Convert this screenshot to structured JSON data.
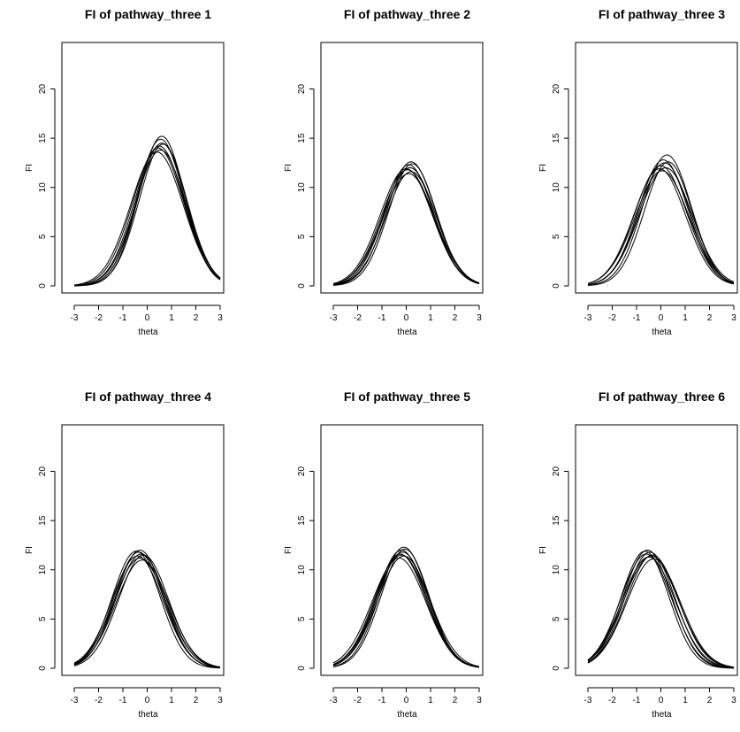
{
  "chart_data": [
    {
      "type": "line",
      "title": "FI of pathway_three 1",
      "xlabel": "theta",
      "ylabel": "FI",
      "xlim": [
        -3,
        3
      ],
      "ylim": [
        0,
        24
      ],
      "xticks": [
        -3,
        -2,
        -1,
        0,
        1,
        2,
        3
      ],
      "yticks": [
        0,
        5,
        10,
        15,
        20
      ],
      "curve_shape": "gaussian",
      "series": [
        {
          "peak": 15.2,
          "center": 0.6,
          "sd": 0.95
        },
        {
          "peak": 14.9,
          "center": 0.55,
          "sd": 0.97
        },
        {
          "peak": 14.5,
          "center": 0.6,
          "sd": 1.0
        },
        {
          "peak": 14.2,
          "center": 0.5,
          "sd": 1.02
        },
        {
          "peak": 14.0,
          "center": 0.45,
          "sd": 1.05
        },
        {
          "peak": 13.8,
          "center": 0.55,
          "sd": 1.03
        },
        {
          "peak": 13.6,
          "center": 0.4,
          "sd": 1.08
        },
        {
          "peak": 14.4,
          "center": 0.65,
          "sd": 0.98
        }
      ]
    },
    {
      "type": "line",
      "title": "FI of pathway_three 2",
      "xlabel": "theta",
      "ylabel": "FI",
      "xlim": [
        -3,
        3
      ],
      "ylim": [
        0,
        24
      ],
      "xticks": [
        -3,
        -2,
        -1,
        0,
        1,
        2,
        3
      ],
      "yticks": [
        0,
        5,
        10,
        15,
        20
      ],
      "curve_shape": "gaussian",
      "series": [
        {
          "peak": 12.6,
          "center": 0.2,
          "sd": 1.0
        },
        {
          "peak": 12.3,
          "center": 0.1,
          "sd": 1.02
        },
        {
          "peak": 12.0,
          "center": 0.15,
          "sd": 1.05
        },
        {
          "peak": 11.8,
          "center": 0.05,
          "sd": 1.06
        },
        {
          "peak": 11.6,
          "center": 0.2,
          "sd": 1.04
        },
        {
          "peak": 11.4,
          "center": 0.1,
          "sd": 1.08
        },
        {
          "peak": 12.4,
          "center": 0.25,
          "sd": 0.98
        },
        {
          "peak": 11.9,
          "center": 0.0,
          "sd": 1.07
        }
      ]
    },
    {
      "type": "line",
      "title": "FI of pathway_three 3",
      "xlabel": "theta",
      "ylabel": "FI",
      "xlim": [
        -3,
        3
      ],
      "ylim": [
        0,
        24
      ],
      "xticks": [
        -3,
        -2,
        -1,
        0,
        1,
        2,
        3
      ],
      "yticks": [
        0,
        5,
        10,
        15,
        20
      ],
      "curve_shape": "gaussian",
      "series": [
        {
          "peak": 13.3,
          "center": 0.25,
          "sd": 1.0
        },
        {
          "peak": 12.8,
          "center": 0.1,
          "sd": 1.02
        },
        {
          "peak": 12.5,
          "center": 0.15,
          "sd": 1.04
        },
        {
          "peak": 12.2,
          "center": 0.0,
          "sd": 1.07
        },
        {
          "peak": 12.0,
          "center": 0.2,
          "sd": 1.08
        },
        {
          "peak": 11.7,
          "center": 0.05,
          "sd": 1.1
        },
        {
          "peak": 12.6,
          "center": 0.3,
          "sd": 0.98
        },
        {
          "peak": 11.9,
          "center": -0.05,
          "sd": 1.06
        }
      ]
    },
    {
      "type": "line",
      "title": "FI of pathway_three 4",
      "xlabel": "theta",
      "ylabel": "FI",
      "xlim": [
        -3,
        3
      ],
      "ylim": [
        0,
        24
      ],
      "xticks": [
        -3,
        -2,
        -1,
        0,
        1,
        2,
        3
      ],
      "yticks": [
        0,
        5,
        10,
        15,
        20
      ],
      "curve_shape": "gaussian",
      "series": [
        {
          "peak": 12.0,
          "center": -0.3,
          "sd": 1.0
        },
        {
          "peak": 11.8,
          "center": -0.35,
          "sd": 1.02
        },
        {
          "peak": 11.6,
          "center": -0.25,
          "sd": 1.04
        },
        {
          "peak": 11.4,
          "center": -0.4,
          "sd": 1.05
        },
        {
          "peak": 11.2,
          "center": -0.3,
          "sd": 1.07
        },
        {
          "peak": 11.0,
          "center": -0.2,
          "sd": 1.08
        },
        {
          "peak": 11.9,
          "center": -0.45,
          "sd": 0.99
        },
        {
          "peak": 11.5,
          "center": -0.15,
          "sd": 1.03
        }
      ]
    },
    {
      "type": "line",
      "title": "FI of pathway_three 5",
      "xlabel": "theta",
      "ylabel": "FI",
      "xlim": [
        -3,
        3
      ],
      "ylim": [
        0,
        24
      ],
      "xticks": [
        -3,
        -2,
        -1,
        0,
        1,
        2,
        3
      ],
      "yticks": [
        0,
        5,
        10,
        15,
        20
      ],
      "curve_shape": "gaussian",
      "series": [
        {
          "peak": 12.3,
          "center": -0.1,
          "sd": 1.0
        },
        {
          "peak": 12.0,
          "center": -0.2,
          "sd": 1.03
        },
        {
          "peak": 11.8,
          "center": -0.15,
          "sd": 1.05
        },
        {
          "peak": 11.6,
          "center": -0.25,
          "sd": 1.06
        },
        {
          "peak": 11.4,
          "center": -0.1,
          "sd": 1.08
        },
        {
          "peak": 11.2,
          "center": -0.3,
          "sd": 1.1
        },
        {
          "peak": 12.1,
          "center": -0.05,
          "sd": 0.99
        },
        {
          "peak": 11.5,
          "center": -0.2,
          "sd": 1.07
        }
      ]
    },
    {
      "type": "line",
      "title": "FI of pathway_three 6",
      "xlabel": "theta",
      "ylabel": "FI",
      "xlim": [
        -3,
        3
      ],
      "ylim": [
        0,
        24
      ],
      "xticks": [
        -3,
        -2,
        -1,
        0,
        1,
        2,
        3
      ],
      "yticks": [
        0,
        5,
        10,
        15,
        20
      ],
      "curve_shape": "gaussian",
      "series": [
        {
          "peak": 12.0,
          "center": -0.55,
          "sd": 1.0
        },
        {
          "peak": 11.8,
          "center": -0.45,
          "sd": 1.03
        },
        {
          "peak": 11.6,
          "center": -0.6,
          "sd": 1.05
        },
        {
          "peak": 11.5,
          "center": -0.35,
          "sd": 1.07
        },
        {
          "peak": 11.3,
          "center": -0.5,
          "sd": 1.09
        },
        {
          "peak": 11.1,
          "center": -0.3,
          "sd": 1.1
        },
        {
          "peak": 11.9,
          "center": -0.65,
          "sd": 0.99
        },
        {
          "peak": 11.4,
          "center": -0.4,
          "sd": 1.12
        }
      ]
    }
  ]
}
